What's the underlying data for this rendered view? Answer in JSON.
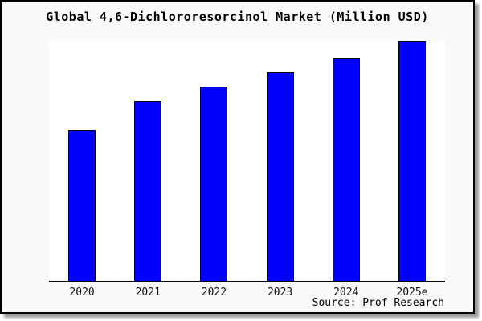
{
  "chart": {
    "title": "Global 4,6-Dichlororesorcinol Market (Million USD)",
    "source": "Source: Prof Research"
  },
  "chart_data": {
    "type": "bar",
    "title": "Global 4,6-Dichlororesorcinol Market (Million USD)",
    "categories": [
      "2020",
      "2021",
      "2022",
      "2023",
      "2024",
      "2025e"
    ],
    "values": [
      63,
      75,
      81,
      87,
      93,
      100
    ],
    "value_note": "y-axis has no tick labels; values are relative estimates from bar heights with 2025e = 100",
    "xlabel": "",
    "ylabel": "",
    "ylim": [
      0,
      100
    ],
    "grid": false,
    "legend": false,
    "bar_color": "#0000ff",
    "bar_border_color": "#000000",
    "source": "Source: Prof Research"
  },
  "colors": {
    "frame_background": "#f9f9f9",
    "plot_background": "#ffffff",
    "frame_border": "#000000",
    "axis_line": "#000000",
    "bar_fill": "#0000ff",
    "text": "#000000"
  }
}
